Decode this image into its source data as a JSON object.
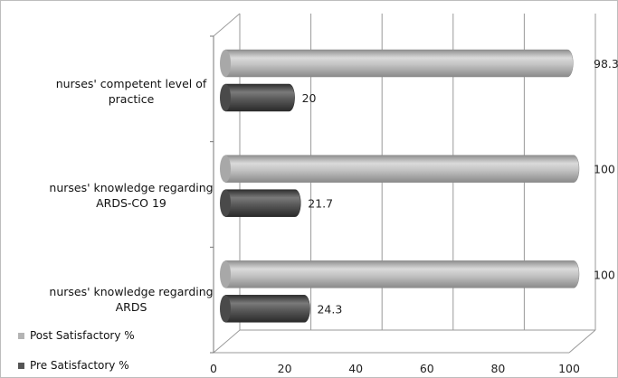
{
  "chart_data": {
    "type": "bar",
    "orientation": "horizontal",
    "categories": [
      "nurses' competent level of practice",
      "nurses' knowledge regarding ARDS-CO 19",
      "nurses' knowledge regarding ARDS"
    ],
    "series": [
      {
        "name": "Post Satisfactory %",
        "values": [
          "98.3",
          "100",
          "100"
        ],
        "color": "#b4b4b4"
      },
      {
        "name": "Pre Satisfactory %",
        "values": [
          "20",
          "21.7",
          "24.3"
        ],
        "color": "#555555"
      }
    ],
    "xticks": [
      "0",
      "20",
      "40",
      "60",
      "80",
      "100"
    ],
    "xlim": [
      0,
      100
    ],
    "grid": true,
    "style": "3d-cylinder",
    "legend_position": "bottom-left"
  }
}
